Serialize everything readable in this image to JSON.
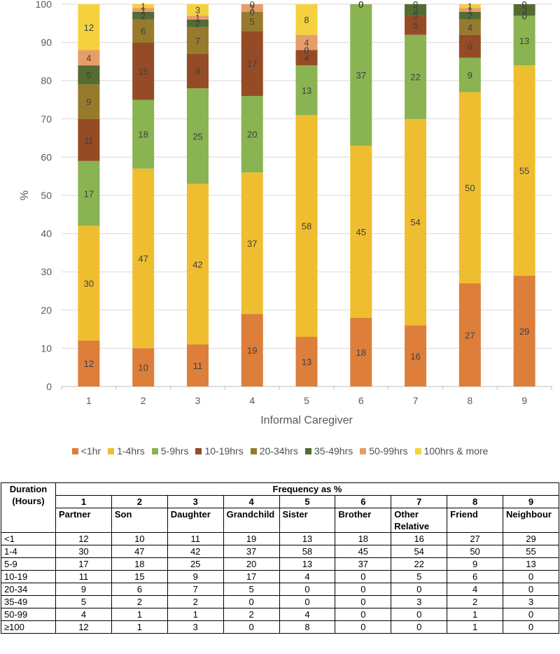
{
  "chart_data": {
    "type": "bar",
    "stacked": true,
    "categories": [
      "1",
      "2",
      "3",
      "4",
      "5",
      "6",
      "7",
      "8",
      "9"
    ],
    "xlabel": "Informal Caregiver",
    "ylabel": "%",
    "ylim": [
      0,
      100
    ],
    "yticks": [
      "0",
      "10",
      "20",
      "30",
      "40",
      "50",
      "60",
      "70",
      "80",
      "90",
      "100"
    ],
    "series": [
      {
        "name": "<1hr",
        "color": "#DD7E3B",
        "values": [
          12,
          10,
          11,
          19,
          13,
          18,
          16,
          27,
          29
        ]
      },
      {
        "name": "1-4hrs",
        "color": "#EFBE30",
        "values": [
          30,
          47,
          42,
          37,
          58,
          45,
          54,
          50,
          55
        ]
      },
      {
        "name": "5-9hrs",
        "color": "#8AB351",
        "values": [
          17,
          18,
          25,
          20,
          13,
          37,
          22,
          9,
          13
        ]
      },
      {
        "name": "10-19hrs",
        "color": "#954B25",
        "values": [
          11,
          15,
          9,
          17,
          4,
          0,
          5,
          6,
          0
        ]
      },
      {
        "name": "20-34hrs",
        "color": "#977B2D",
        "values": [
          9,
          6,
          7,
          5,
          0,
          0,
          0,
          4,
          0
        ]
      },
      {
        "name": "35-49hrs",
        "color": "#546B32",
        "values": [
          5,
          2,
          2,
          0,
          0,
          0,
          3,
          2,
          3
        ]
      },
      {
        "name": "50-99hrs",
        "color": "#E59E6A",
        "values": [
          4,
          1,
          1,
          2,
          4,
          0,
          0,
          1,
          0
        ]
      },
      {
        "name": "100hrs & more",
        "color": "#F5D13F",
        "values": [
          12,
          1,
          3,
          0,
          8,
          0,
          0,
          1,
          0
        ]
      }
    ]
  },
  "table": {
    "corner_label": "Duration (Hours)",
    "header_title": "Frequency as %",
    "numbers": [
      "1",
      "2",
      "3",
      "4",
      "5",
      "6",
      "7",
      "8",
      "9"
    ],
    "names": [
      "Partner",
      "Son",
      "Daughter",
      "Grandchild",
      "Sister",
      "Brother",
      "Other Relative",
      "Friend",
      "Neighbour"
    ],
    "rows": [
      {
        "label": "<1",
        "values": [
          "12",
          "10",
          "11",
          "19",
          "13",
          "18",
          "16",
          "27",
          "29"
        ]
      },
      {
        "label": "1-4",
        "values": [
          "30",
          "47",
          "42",
          "37",
          "58",
          "45",
          "54",
          "50",
          "55"
        ]
      },
      {
        "label": "5-9",
        "values": [
          "17",
          "18",
          "25",
          "20",
          "13",
          "37",
          "22",
          "9",
          "13"
        ]
      },
      {
        "label": "10-19",
        "values": [
          "11",
          "15",
          "9",
          "17",
          "4",
          "0",
          "5",
          "6",
          "0"
        ]
      },
      {
        "label": "20-34",
        "values": [
          "9",
          "6",
          "7",
          "5",
          "0",
          "0",
          "0",
          "4",
          "0"
        ]
      },
      {
        "label": "35-49",
        "values": [
          "5",
          "2",
          "2",
          "0",
          "0",
          "0",
          "3",
          "2",
          "3"
        ]
      },
      {
        "label": "50-99",
        "values": [
          "4",
          "1",
          "1",
          "2",
          "4",
          "0",
          "0",
          "1",
          "0"
        ]
      },
      {
        "label": "≥100",
        "values": [
          "12",
          "1",
          "3",
          "0",
          "8",
          "0",
          "0",
          "1",
          "0"
        ]
      }
    ]
  }
}
